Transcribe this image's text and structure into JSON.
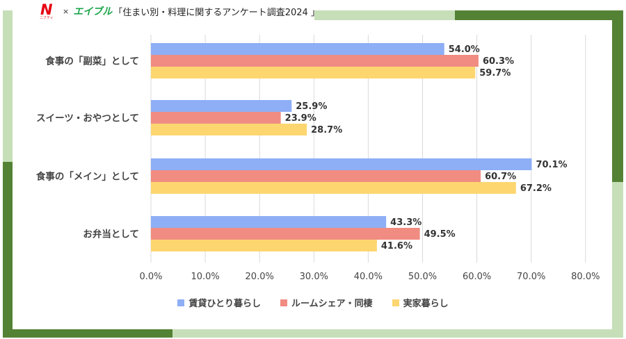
{
  "header": {
    "logo_left": "N",
    "logo_left_sub": "ニフティ",
    "times": "×",
    "logo_right": "エイブル",
    "title": "「住まい別・料理に関するアンケート調査2024 」"
  },
  "colors": {
    "frame_light": "#c6dfb8",
    "frame_dark": "#548235",
    "series": [
      "#8eaef5",
      "#f08c82",
      "#fdd670"
    ],
    "grid": "#d9d9d9",
    "text": "#444444"
  },
  "chart_data": {
    "type": "bar",
    "orientation": "horizontal",
    "categories": [
      "食事の「副菜」として",
      "スイーツ・おやつとして",
      "食事の「メイン」として",
      "お弁当として"
    ],
    "series": [
      {
        "name": "賃貸ひとり暮らし",
        "values": [
          54.0,
          25.9,
          70.1,
          43.3
        ],
        "labels": [
          "54.0%",
          "25.9%",
          "70.1%",
          "43.3%"
        ]
      },
      {
        "name": "ルームシェア・同棲",
        "values": [
          60.3,
          23.9,
          60.7,
          49.5
        ],
        "labels": [
          "60.3%",
          "23.9%",
          "60.7%",
          "49.5%"
        ]
      },
      {
        "name": "実家暮らし",
        "values": [
          59.7,
          28.7,
          67.2,
          41.6
        ],
        "labels": [
          "59.7%",
          "28.7%",
          "67.2%",
          "41.6%"
        ]
      }
    ],
    "xlim": [
      0,
      80
    ],
    "xticks": [
      "0.0%",
      "10.0%",
      "20.0%",
      "30.0%",
      "40.0%",
      "50.0%",
      "60.0%",
      "70.0%",
      "80.0%"
    ],
    "grid": true,
    "legend_position": "bottom"
  }
}
